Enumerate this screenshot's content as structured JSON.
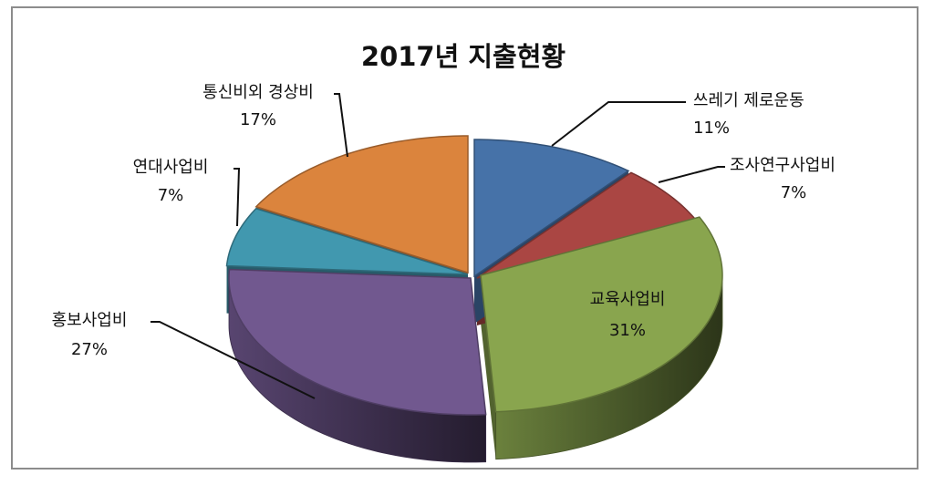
{
  "chart_data": {
    "type": "pie",
    "style": "3d-exploded",
    "title": "2017년 지출현황",
    "legend": "none",
    "slices": [
      {
        "label": "쓰레기 제로운동",
        "value": 11,
        "value_label": "11%",
        "color": "#4672A8"
      },
      {
        "label": "조사연구사업비",
        "value": 7,
        "value_label": "7%",
        "color": "#AA4643"
      },
      {
        "label": "교육사업비",
        "value": 31,
        "value_label": "31%",
        "color": "#89A54E"
      },
      {
        "label": "홍보사업비",
        "value": 27,
        "value_label": "27%",
        "color": "#71588F"
      },
      {
        "label": "연대사업비",
        "value": 7,
        "value_label": "7%",
        "color": "#4198AF"
      },
      {
        "label": "통신비외 경상비",
        "value": 17,
        "value_label": "17%",
        "color": "#DB843D"
      }
    ]
  }
}
